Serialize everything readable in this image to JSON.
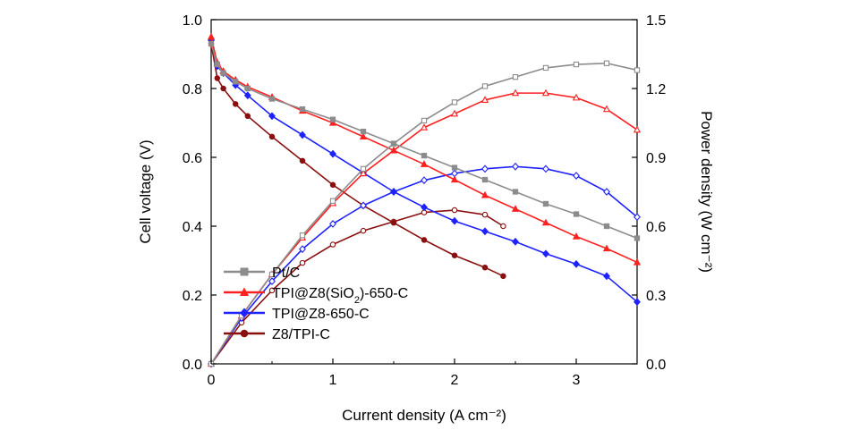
{
  "chart_data": {
    "type": "line",
    "title": "",
    "xlabel": "Current density (A cm⁻²)",
    "ylabel_left": "Cell voltage (V)",
    "ylabel_right": "Power density (W cm⁻²)",
    "xlim": [
      0,
      3.5
    ],
    "ylim_left": [
      0,
      1.0
    ],
    "ylim_right": [
      0,
      1.5
    ],
    "x_ticks": [
      "0",
      "1",
      "2",
      "3"
    ],
    "y_left_ticks": [
      "0.0",
      "0.2",
      "0.4",
      "0.6",
      "0.8",
      "1.0"
    ],
    "y_right_ticks": [
      "0.0",
      "0.3",
      "0.6",
      "0.9",
      "1.2",
      "1.5"
    ],
    "grid": false,
    "legend_position": "lower-left",
    "series": [
      {
        "name": "Pt/C",
        "color": "#8c8c8c",
        "marker": "square",
        "polarization": {
          "x": [
            0,
            0.05,
            0.1,
            0.2,
            0.3,
            0.5,
            0.75,
            1.0,
            1.25,
            1.5,
            1.75,
            2.0,
            2.25,
            2.5,
            2.75,
            3.0,
            3.25,
            3.5
          ],
          "y": [
            0.93,
            0.87,
            0.845,
            0.82,
            0.8,
            0.77,
            0.74,
            0.71,
            0.675,
            0.64,
            0.605,
            0.57,
            0.535,
            0.5,
            0.465,
            0.435,
            0.4,
            0.365
          ]
        },
        "power": {
          "x": [
            0,
            0.25,
            0.5,
            0.75,
            1.0,
            1.25,
            1.5,
            1.75,
            2.0,
            2.25,
            2.5,
            2.75,
            3.0,
            3.25,
            3.5
          ],
          "y": [
            0,
            0.21,
            0.39,
            0.56,
            0.71,
            0.85,
            0.96,
            1.06,
            1.14,
            1.21,
            1.25,
            1.29,
            1.305,
            1.31,
            1.28
          ]
        }
      },
      {
        "name": "TPI@Z8(SiO₂)-650-C",
        "name_main": "TPI@Z8(SiO",
        "name_sub": "2",
        "name_tail": ")-650-C",
        "color": "#ff2020",
        "marker": "triangle",
        "polarization": {
          "x": [
            0,
            0.05,
            0.1,
            0.2,
            0.3,
            0.5,
            0.75,
            1.0,
            1.25,
            1.5,
            1.75,
            2.0,
            2.25,
            2.5,
            2.75,
            3.0,
            3.25,
            3.5
          ],
          "y": [
            0.95,
            0.875,
            0.85,
            0.825,
            0.805,
            0.775,
            0.735,
            0.7,
            0.66,
            0.62,
            0.58,
            0.535,
            0.49,
            0.45,
            0.41,
            0.37,
            0.335,
            0.295
          ]
        },
        "power": {
          "x": [
            0,
            0.25,
            0.5,
            0.75,
            1.0,
            1.25,
            1.5,
            1.75,
            2.0,
            2.25,
            2.5,
            2.75,
            3.0,
            3.25,
            3.5
          ],
          "y": [
            0,
            0.21,
            0.39,
            0.55,
            0.7,
            0.83,
            0.93,
            1.03,
            1.09,
            1.15,
            1.18,
            1.18,
            1.16,
            1.11,
            1.02
          ]
        }
      },
      {
        "name": "TPI@Z8-650-C",
        "color": "#1e22ff",
        "marker": "diamond",
        "polarization": {
          "x": [
            0,
            0.05,
            0.1,
            0.2,
            0.3,
            0.5,
            0.75,
            1.0,
            1.25,
            1.5,
            1.75,
            2.0,
            2.25,
            2.5,
            2.75,
            3.0,
            3.25,
            3.5
          ],
          "y": [
            0.94,
            0.865,
            0.845,
            0.81,
            0.78,
            0.72,
            0.665,
            0.61,
            0.555,
            0.5,
            0.455,
            0.415,
            0.385,
            0.355,
            0.32,
            0.29,
            0.255,
            0.18
          ]
        },
        "power": {
          "x": [
            0,
            0.25,
            0.5,
            0.75,
            1.0,
            1.25,
            1.5,
            1.75,
            2.0,
            2.25,
            2.5,
            2.75,
            3.0,
            3.25,
            3.5
          ],
          "y": [
            0,
            0.2,
            0.36,
            0.5,
            0.61,
            0.69,
            0.75,
            0.8,
            0.83,
            0.85,
            0.86,
            0.85,
            0.82,
            0.75,
            0.64
          ]
        }
      },
      {
        "name": "Z8/TPI-C",
        "color": "#8a1010",
        "marker": "circle",
        "polarization": {
          "x": [
            0,
            0.05,
            0.1,
            0.2,
            0.3,
            0.5,
            0.75,
            1.0,
            1.25,
            1.5,
            1.75,
            2.0,
            2.25,
            2.4
          ],
          "y": [
            0.93,
            0.83,
            0.8,
            0.755,
            0.72,
            0.66,
            0.59,
            0.52,
            0.46,
            0.41,
            0.36,
            0.315,
            0.28,
            0.255
          ]
        },
        "power": {
          "x": [
            0,
            0.25,
            0.5,
            0.75,
            1.0,
            1.25,
            1.5,
            1.75,
            2.0,
            2.25,
            2.4
          ],
          "y": [
            0,
            0.18,
            0.32,
            0.44,
            0.52,
            0.58,
            0.62,
            0.66,
            0.67,
            0.65,
            0.6
          ]
        }
      }
    ]
  }
}
